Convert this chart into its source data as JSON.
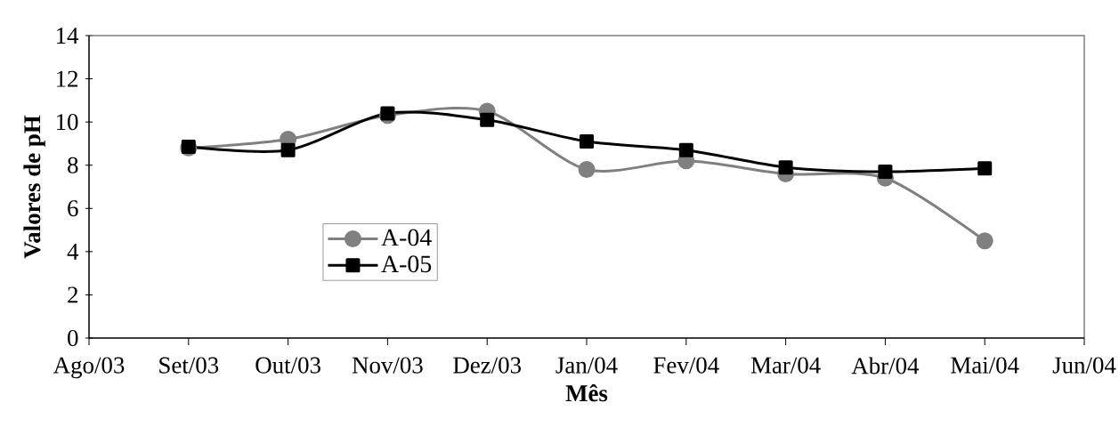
{
  "chart_data": {
    "type": "line",
    "xlabel": "Mês",
    "ylabel": "Valores de pH",
    "categories": [
      "Ago/03",
      "Set/03",
      "Out/03",
      "Nov/03",
      "Dez/03",
      "Jan/04",
      "Fev/04",
      "Mar/04",
      "Abr/04",
      "Mai/04",
      "Jun/04"
    ],
    "series": [
      {
        "name": "A-04",
        "color": "#808080",
        "marker": "circle",
        "values": [
          null,
          8.8,
          9.2,
          10.3,
          10.5,
          7.8,
          8.2,
          7.6,
          7.4,
          4.5,
          null
        ]
      },
      {
        "name": "A-05",
        "color": "#000000",
        "marker": "square",
        "values": [
          null,
          8.85,
          8.7,
          10.4,
          10.1,
          9.1,
          8.7,
          7.9,
          7.7,
          7.85,
          null
        ]
      }
    ],
    "ylim": [
      0,
      14
    ],
    "yticks": [
      0,
      2,
      4,
      6,
      8,
      10,
      12,
      14
    ],
    "legend": "bottom left",
    "line_style": "solid"
  }
}
